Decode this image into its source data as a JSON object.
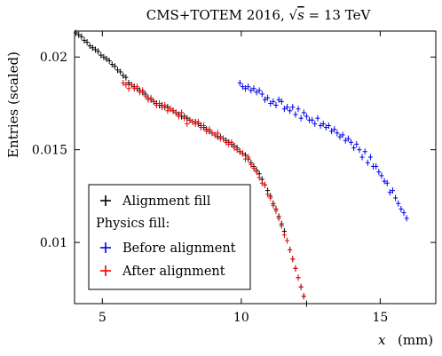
{
  "chart_data": {
    "type": "scatter",
    "title": "CMS+TOTEM 2016, √s = 13 TeV",
    "title_parts": {
      "prefix": "CMS+TOTEM 2016, ",
      "sqrt": "√",
      "s": "s",
      "suffix": " = 13 TeV"
    },
    "xlabel_var": "x",
    "xlabel_unit": "(mm)",
    "ylabel": "Entries (scaled)",
    "xlim": [
      4.0,
      17.0
    ],
    "ylim": [
      0.0067,
      0.0214
    ],
    "x_ticks": [
      5,
      10,
      15
    ],
    "y_ticks": [
      0.01,
      0.015,
      0.02
    ],
    "x_tick_labels": [
      "5",
      "10",
      "15"
    ],
    "y_tick_labels": [
      "0.01",
      "0.015",
      "0.02"
    ],
    "grid": false,
    "legend": {
      "placement": "bottom-left",
      "header": "Physics fill:"
    },
    "series": [
      {
        "name": "Alignment fill",
        "color": "#000000",
        "x": [
          4.05,
          4.15,
          4.25,
          4.35,
          4.45,
          4.55,
          4.65,
          4.75,
          4.85,
          4.95,
          5.05,
          5.15,
          5.25,
          5.35,
          5.45,
          5.55,
          5.65,
          5.75,
          5.85,
          5.95,
          6.05,
          6.15,
          6.25,
          6.35,
          6.45,
          6.55,
          6.65,
          6.75,
          6.85,
          6.95,
          7.05,
          7.15,
          7.25,
          7.35,
          7.45,
          7.55,
          7.65,
          7.75,
          7.85,
          7.95,
          8.05,
          8.15,
          8.25,
          8.35,
          8.45,
          8.55,
          8.65,
          8.75,
          8.85,
          8.95,
          9.05,
          9.15,
          9.25,
          9.35,
          9.45,
          9.55,
          9.65,
          9.75,
          9.85,
          9.95,
          10.05,
          10.15,
          10.25,
          10.35,
          10.45,
          10.55,
          10.65,
          10.75,
          10.85,
          10.95,
          11.05,
          11.15,
          11.25,
          11.35,
          11.45,
          11.55,
          11.65,
          11.75,
          11.85,
          11.95,
          12.05,
          12.15,
          12.25,
          12.35
        ],
        "values": [
          0.0213,
          0.0212,
          0.0211,
          0.0209,
          0.0208,
          0.0206,
          0.0205,
          0.0204,
          0.0203,
          0.0201,
          0.02,
          0.0199,
          0.0198,
          0.0196,
          0.0195,
          0.0193,
          0.0192,
          0.019,
          0.0189,
          0.0186,
          0.0185,
          0.0184,
          0.0183,
          0.0182,
          0.0181,
          0.018,
          0.0178,
          0.0177,
          0.0176,
          0.0175,
          0.0174,
          0.0174,
          0.0173,
          0.0173,
          0.0172,
          0.0171,
          0.017,
          0.0169,
          0.0168,
          0.0168,
          0.0167,
          0.0166,
          0.0165,
          0.0165,
          0.0164,
          0.0163,
          0.0162,
          0.0161,
          0.016,
          0.0159,
          0.0158,
          0.0157,
          0.0157,
          0.0156,
          0.0155,
          0.0154,
          0.0153,
          0.0152,
          0.0151,
          0.0149,
          0.0148,
          0.0147,
          0.0145,
          0.0143,
          0.0141,
          0.0139,
          0.0137,
          0.0134,
          0.0131,
          0.0128,
          0.0125,
          0.0121,
          0.0118,
          0.0114,
          0.011,
          0.0106,
          0.0101,
          0.0096,
          0.0091,
          0.0086,
          0.0081,
          0.0076,
          0.0071,
          0.0067
        ]
      },
      {
        "name": "Before alignment",
        "color": "#0000ee",
        "x": [
          9.95,
          10.05,
          10.15,
          10.25,
          10.35,
          10.45,
          10.55,
          10.65,
          10.75,
          10.85,
          10.95,
          11.05,
          11.15,
          11.25,
          11.35,
          11.45,
          11.55,
          11.65,
          11.75,
          11.85,
          11.95,
          12.05,
          12.15,
          12.25,
          12.35,
          12.45,
          12.55,
          12.65,
          12.75,
          12.85,
          12.95,
          13.05,
          13.15,
          13.25,
          13.35,
          13.45,
          13.55,
          13.65,
          13.75,
          13.85,
          13.95,
          14.05,
          14.15,
          14.25,
          14.35,
          14.45,
          14.55,
          14.65,
          14.75,
          14.85,
          14.95,
          15.05,
          15.15,
          15.25,
          15.35,
          15.45,
          15.55,
          15.65,
          15.75,
          15.85,
          15.95
        ],
        "values": [
          0.0186,
          0.0184,
          0.0183,
          0.0184,
          0.0182,
          0.0183,
          0.0181,
          0.0182,
          0.018,
          0.0177,
          0.0178,
          0.0175,
          0.0176,
          0.0174,
          0.0177,
          0.0176,
          0.0172,
          0.0173,
          0.0171,
          0.0173,
          0.0169,
          0.0172,
          0.0167,
          0.017,
          0.0168,
          0.0166,
          0.0166,
          0.0164,
          0.0167,
          0.0163,
          0.0164,
          0.0162,
          0.0163,
          0.016,
          0.0161,
          0.0159,
          0.0157,
          0.0158,
          0.0155,
          0.0156,
          0.0154,
          0.0151,
          0.0153,
          0.015,
          0.0146,
          0.0149,
          0.0143,
          0.0146,
          0.0141,
          0.0141,
          0.0138,
          0.0136,
          0.0133,
          0.0132,
          0.0127,
          0.0128,
          0.0124,
          0.0121,
          0.0118,
          0.0116,
          0.0113
        ]
      },
      {
        "name": "After alignment",
        "color": "#ee0000",
        "x": [
          5.75,
          5.85,
          5.95,
          6.05,
          6.15,
          6.25,
          6.35,
          6.45,
          6.55,
          6.65,
          6.75,
          6.85,
          6.95,
          7.05,
          7.15,
          7.25,
          7.35,
          7.45,
          7.55,
          7.65,
          7.75,
          7.85,
          7.95,
          8.05,
          8.15,
          8.25,
          8.35,
          8.45,
          8.55,
          8.65,
          8.75,
          8.85,
          8.95,
          9.05,
          9.15,
          9.25,
          9.35,
          9.45,
          9.55,
          9.65,
          9.75,
          9.85,
          9.95,
          10.05,
          10.15,
          10.25,
          10.35,
          10.45,
          10.55,
          10.65,
          10.75,
          10.85,
          10.95,
          11.05,
          11.15,
          11.25,
          11.35,
          11.45,
          11.55,
          11.65,
          11.75,
          11.85,
          11.95,
          12.05,
          12.15,
          12.25
        ],
        "values": [
          0.0186,
          0.0185,
          0.0183,
          0.0185,
          0.0183,
          0.0184,
          0.0181,
          0.0182,
          0.0179,
          0.0177,
          0.0178,
          0.0176,
          0.0174,
          0.0175,
          0.0173,
          0.0174,
          0.0171,
          0.0172,
          0.0171,
          0.017,
          0.0168,
          0.017,
          0.0167,
          0.0164,
          0.0166,
          0.0165,
          0.0164,
          0.0165,
          0.0162,
          0.0163,
          0.016,
          0.0161,
          0.0159,
          0.0158,
          0.0159,
          0.0156,
          0.0156,
          0.0154,
          0.0153,
          0.0154,
          0.0151,
          0.015,
          0.0149,
          0.0148,
          0.0145,
          0.0146,
          0.0142,
          0.014,
          0.0138,
          0.0135,
          0.0132,
          0.0131,
          0.0126,
          0.0124,
          0.012,
          0.0117,
          0.0113,
          0.0109,
          0.0104,
          0.0101,
          0.0096,
          0.0091,
          0.0086,
          0.0081,
          0.0076,
          0.0071
        ]
      }
    ]
  }
}
